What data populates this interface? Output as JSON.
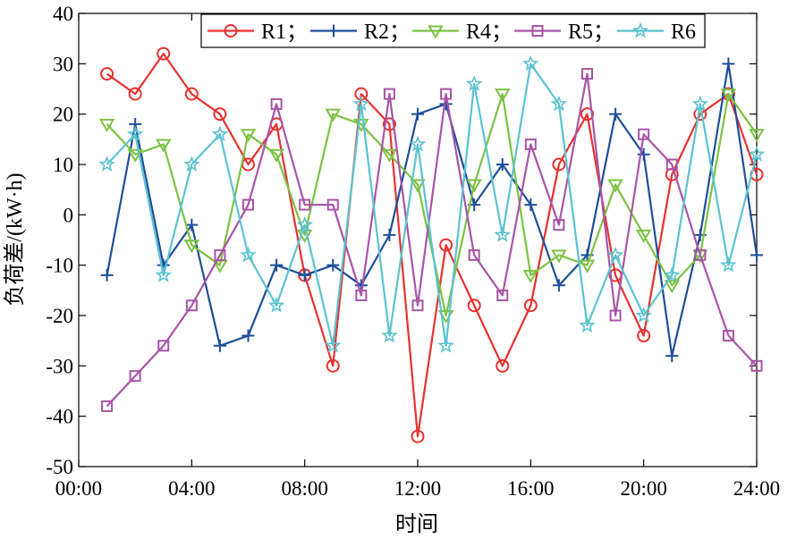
{
  "chart_data": {
    "type": "line",
    "xlabel": "时间",
    "ylabel": "负荷差/(kW·h)",
    "x_hours": [
      1,
      2,
      3,
      4,
      5,
      6,
      7,
      8,
      9,
      10,
      11,
      12,
      13,
      14,
      15,
      16,
      17,
      18,
      19,
      20,
      21,
      22,
      23,
      24
    ],
    "xlim": [
      0,
      24
    ],
    "ylim": [
      -50,
      40
    ],
    "x_tick_values": [
      0,
      4,
      8,
      12,
      16,
      20,
      24
    ],
    "x_tick_labels": [
      "00:00",
      "04:00",
      "08:00",
      "12:00",
      "16:00",
      "20:00",
      "24:00"
    ],
    "y_ticks": [
      -50,
      -40,
      -30,
      -20,
      -10,
      0,
      10,
      20,
      30,
      40
    ],
    "legend_position": "top",
    "series": [
      {
        "name": "R1",
        "legend_label": "R1；",
        "color": "#e8312f",
        "marker": "circle",
        "values": [
          28,
          24,
          32,
          24,
          20,
          10,
          18,
          -12,
          -30,
          24,
          18,
          -44,
          -6,
          -18,
          -30,
          -18,
          10,
          20,
          -12,
          -24,
          8,
          20,
          24,
          8
        ]
      },
      {
        "name": "R2",
        "legend_label": "R2；",
        "color": "#1f4e9a",
        "marker": "plus",
        "values": [
          -12,
          18,
          -10,
          -2,
          -26,
          -24,
          -10,
          -12,
          -10,
          -14,
          -4,
          20,
          22,
          2,
          10,
          2,
          -14,
          -8,
          20,
          12,
          -28,
          -4,
          30,
          -8
        ]
      },
      {
        "name": "R4",
        "legend_label": "R4；",
        "color": "#7cc242",
        "marker": "triangle-down",
        "values": [
          18,
          12,
          14,
          -6,
          -10,
          16,
          12,
          -4,
          20,
          18,
          12,
          6,
          -20,
          6,
          24,
          -12,
          -8,
          -10,
          6,
          -4,
          -14,
          -8,
          24,
          16
        ]
      },
      {
        "name": "R5",
        "legend_label": "R5；",
        "color": "#a855a8",
        "marker": "square",
        "values": [
          -38,
          -32,
          -26,
          -18,
          -8,
          2,
          22,
          2,
          2,
          -16,
          24,
          -18,
          24,
          -8,
          -16,
          14,
          -2,
          28,
          -20,
          16,
          10,
          -8,
          -24,
          -30
        ]
      },
      {
        "name": "R6",
        "legend_label": "R6",
        "color": "#5bc3d0",
        "marker": "star",
        "values": [
          10,
          16,
          -12,
          10,
          16,
          -8,
          -18,
          -2,
          -26,
          22,
          -24,
          14,
          -26,
          26,
          -4,
          30,
          22,
          -22,
          -8,
          -20,
          -12,
          22,
          -10,
          12
        ]
      }
    ]
  }
}
